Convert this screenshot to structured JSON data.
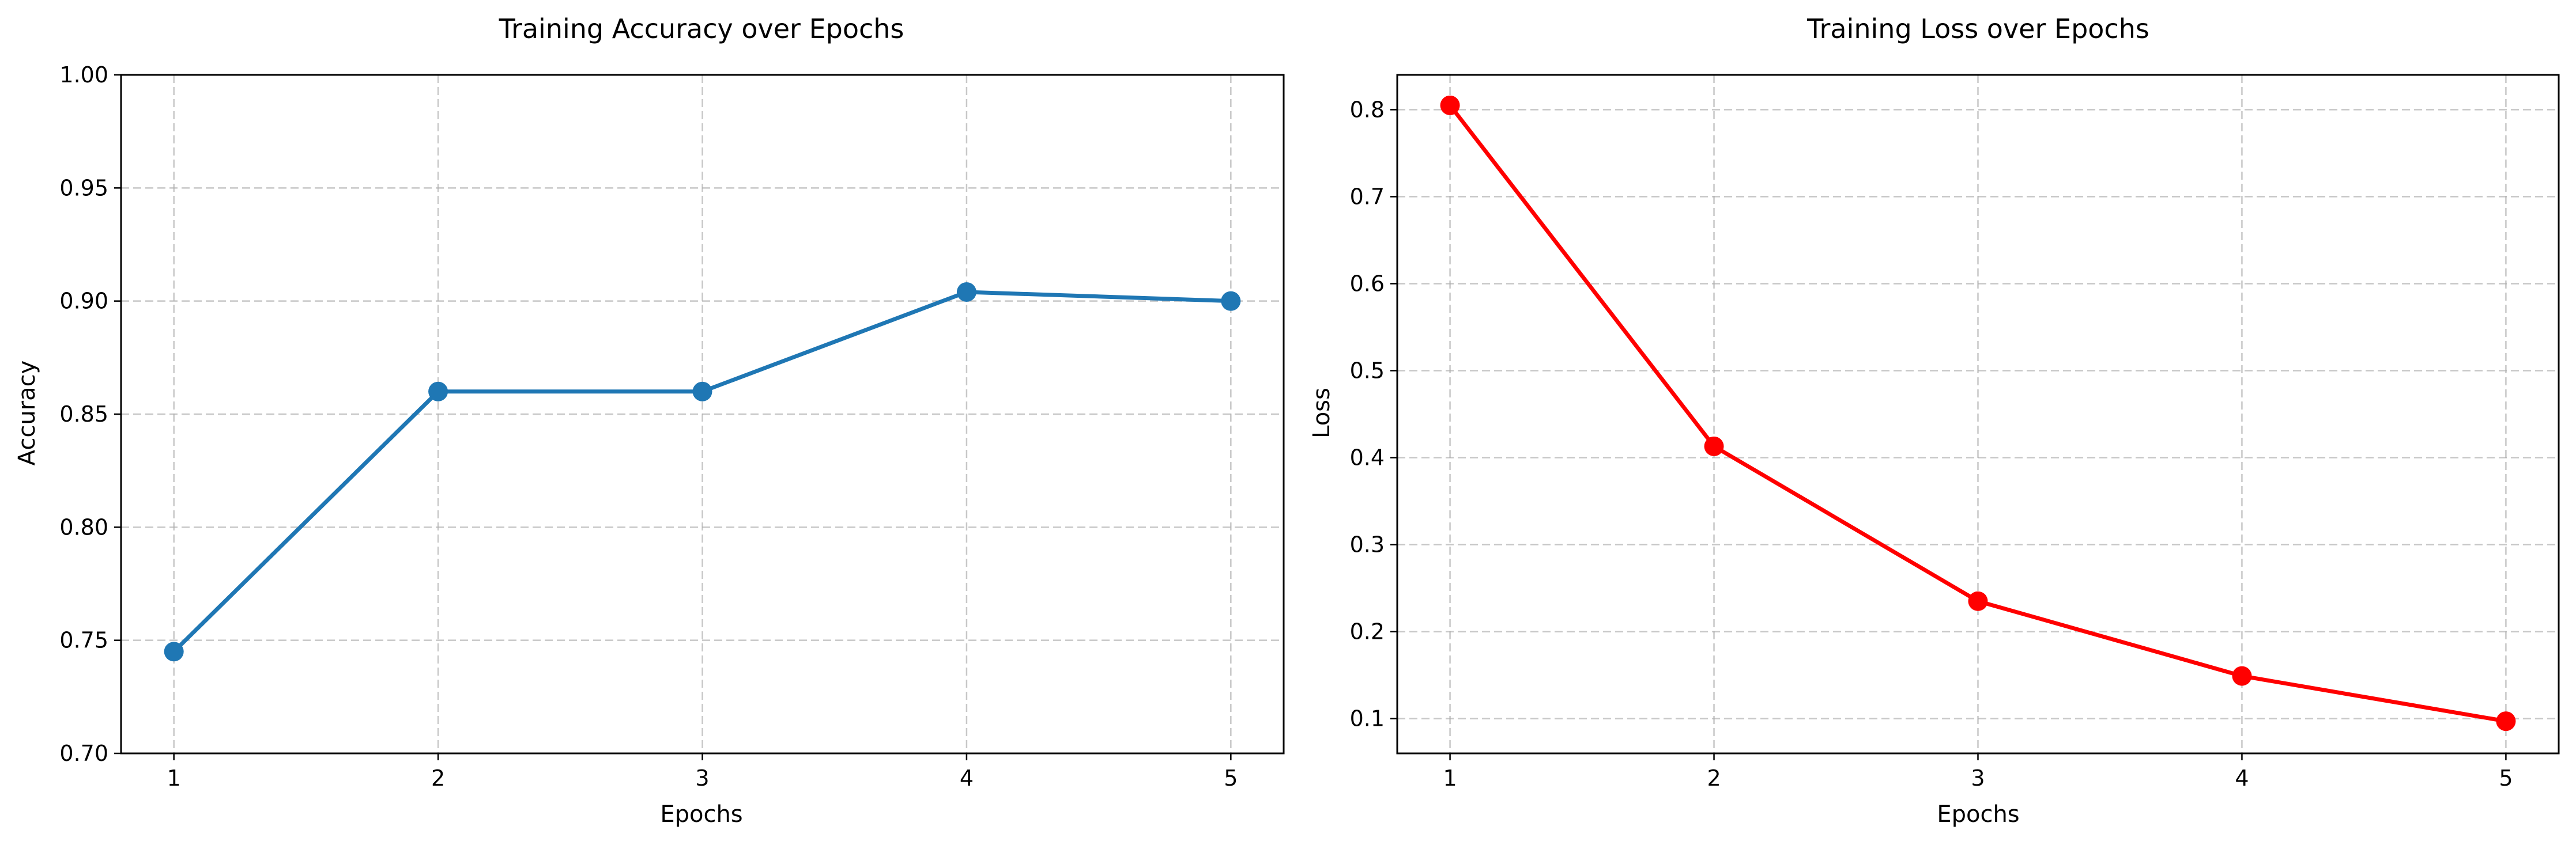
{
  "chart_data": [
    {
      "type": "line",
      "title": "Training Accuracy over Epochs",
      "xlabel": "Epochs",
      "ylabel": "Accuracy",
      "x": [
        1,
        2,
        3,
        4,
        5
      ],
      "xlim": [
        0.8,
        5.2
      ],
      "ylim": [
        0.7,
        1.0
      ],
      "xticks": [
        "1",
        "2",
        "3",
        "4",
        "5"
      ],
      "yticks": [
        "0.70",
        "0.75",
        "0.80",
        "0.85",
        "0.90",
        "0.95",
        "1.00"
      ],
      "grid": true,
      "grid_style": "dashed",
      "series": [
        {
          "values": [
            0.745,
            0.86,
            0.86,
            0.904,
            0.9
          ],
          "color": "#1f77b4",
          "marker": "circle"
        }
      ]
    },
    {
      "type": "line",
      "title": "Training Loss over Epochs",
      "xlabel": "Epochs",
      "ylabel": "Loss",
      "x": [
        1,
        2,
        3,
        4,
        5
      ],
      "xlim": [
        0.8,
        5.2
      ],
      "ylim": [
        0.06,
        0.84
      ],
      "xticks": [
        "1",
        "2",
        "3",
        "4",
        "5"
      ],
      "yticks": [
        "0.1",
        "0.2",
        "0.3",
        "0.4",
        "0.5",
        "0.6",
        "0.7",
        "0.8"
      ],
      "grid": true,
      "grid_style": "dashed",
      "series": [
        {
          "values": [
            0.805,
            0.413,
            0.235,
            0.149,
            0.097
          ],
          "color": "#ff0000",
          "marker": "circle"
        }
      ]
    }
  ]
}
